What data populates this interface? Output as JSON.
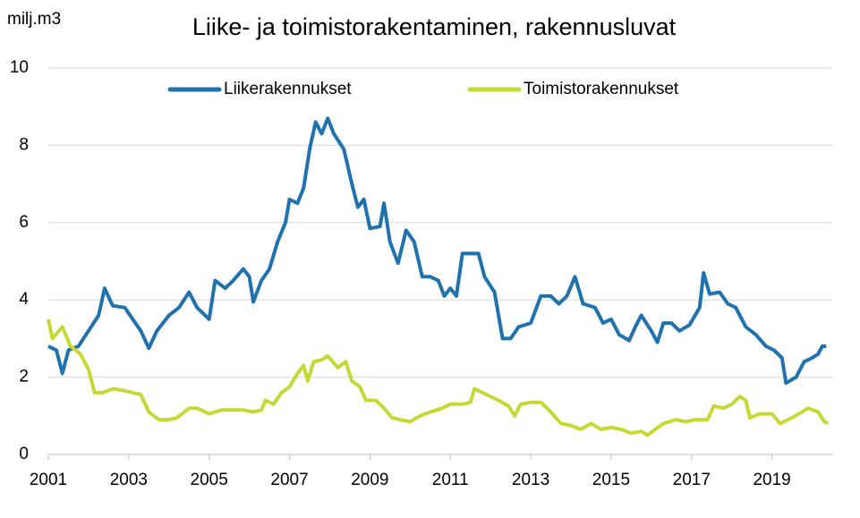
{
  "chart_data": {
    "type": "line",
    "title": "Liike- ja toimistorakentaminen, rakennusluvat",
    "y_label": "milj.m3",
    "xlim": [
      2001,
      2020.5
    ],
    "xticks": [
      2001,
      2003,
      2005,
      2007,
      2009,
      2011,
      2013,
      2015,
      2017,
      2019
    ],
    "ylim": [
      0,
      10
    ],
    "yticks": [
      0,
      2,
      4,
      6,
      8,
      10
    ],
    "grid": true,
    "legend": "top",
    "series": [
      {
        "name": "Liikerakennukset",
        "color": "#1f72ad",
        "x": [
          2001.0,
          2001.2,
          2001.35,
          2001.5,
          2001.75,
          2002.0,
          2002.25,
          2002.4,
          2002.6,
          2002.9,
          2003.1,
          2003.3,
          2003.5,
          2003.7,
          2004.0,
          2004.25,
          2004.5,
          2004.7,
          2005.0,
          2005.15,
          2005.4,
          2005.6,
          2005.85,
          2006.0,
          2006.1,
          2006.3,
          2006.5,
          2006.7,
          2006.9,
          2007.0,
          2007.2,
          2007.35,
          2007.5,
          2007.65,
          2007.8,
          2007.95,
          2008.1,
          2008.35,
          2008.55,
          2008.7,
          2008.85,
          2009.0,
          2009.25,
          2009.35,
          2009.5,
          2009.7,
          2009.9,
          2010.1,
          2010.3,
          2010.5,
          2010.7,
          2010.85,
          2011.0,
          2011.15,
          2011.3,
          2011.5,
          2011.7,
          2011.85,
          2012.1,
          2012.3,
          2012.5,
          2012.7,
          2013.0,
          2013.25,
          2013.5,
          2013.7,
          2013.9,
          2014.1,
          2014.3,
          2014.6,
          2014.8,
          2015.0,
          2015.2,
          2015.45,
          2015.6,
          2015.75,
          2016.0,
          2016.15,
          2016.3,
          2016.5,
          2016.7,
          2016.95,
          2017.2,
          2017.3,
          2017.45,
          2017.7,
          2017.9,
          2018.1,
          2018.35,
          2018.6,
          2018.85,
          2019.05,
          2019.25,
          2019.35,
          2019.6,
          2019.8,
          2020.0,
          2020.15,
          2020.25,
          2020.35
        ],
        "values": [
          2.8,
          2.7,
          2.1,
          2.7,
          2.8,
          3.2,
          3.6,
          4.3,
          3.85,
          3.8,
          3.5,
          3.2,
          2.75,
          3.2,
          3.6,
          3.8,
          4.2,
          3.8,
          3.5,
          4.5,
          4.3,
          4.5,
          4.8,
          4.6,
          3.95,
          4.5,
          4.8,
          5.5,
          6.0,
          6.6,
          6.5,
          6.9,
          7.9,
          8.6,
          8.3,
          8.7,
          8.3,
          7.9,
          7.0,
          6.4,
          6.6,
          5.85,
          5.9,
          6.5,
          5.5,
          4.95,
          5.8,
          5.5,
          4.6,
          4.6,
          4.5,
          4.1,
          4.3,
          4.1,
          5.2,
          5.2,
          5.2,
          4.6,
          4.2,
          3.0,
          3.0,
          3.3,
          3.4,
          4.1,
          4.1,
          3.9,
          4.1,
          4.6,
          3.9,
          3.8,
          3.4,
          3.5,
          3.1,
          2.95,
          3.3,
          3.6,
          3.2,
          2.9,
          3.4,
          3.4,
          3.2,
          3.35,
          3.8,
          4.7,
          4.15,
          4.2,
          3.9,
          3.8,
          3.3,
          3.1,
          2.8,
          2.7,
          2.5,
          1.85,
          2.0,
          2.4,
          2.5,
          2.6,
          2.8,
          2.8
        ]
      },
      {
        "name": "Toimistorakennukset",
        "color": "#c5d836",
        "x": [
          2001.0,
          2001.1,
          2001.35,
          2001.55,
          2001.8,
          2002.0,
          2002.15,
          2002.35,
          2002.6,
          2002.9,
          2003.1,
          2003.3,
          2003.5,
          2003.75,
          2004.0,
          2004.2,
          2004.5,
          2004.7,
          2005.0,
          2005.3,
          2005.6,
          2005.85,
          2006.1,
          2006.3,
          2006.4,
          2006.6,
          2006.8,
          2007.0,
          2007.2,
          2007.35,
          2007.45,
          2007.6,
          2007.8,
          2007.95,
          2008.2,
          2008.4,
          2008.55,
          2008.75,
          2008.9,
          2009.15,
          2009.35,
          2009.55,
          2009.75,
          2010.0,
          2010.25,
          2010.5,
          2010.8,
          2011.0,
          2011.3,
          2011.5,
          2011.6,
          2011.9,
          2012.2,
          2012.45,
          2012.6,
          2012.75,
          2013.0,
          2013.25,
          2013.5,
          2013.75,
          2014.0,
          2014.25,
          2014.5,
          2014.75,
          2015.0,
          2015.25,
          2015.5,
          2015.75,
          2015.9,
          2016.1,
          2016.3,
          2016.6,
          2016.85,
          2017.1,
          2017.4,
          2017.55,
          2017.8,
          2018.0,
          2018.2,
          2018.35,
          2018.45,
          2018.7,
          2019.0,
          2019.2,
          2019.5,
          2019.75,
          2019.9,
          2020.15,
          2020.3,
          2020.4
        ],
        "values": [
          3.5,
          3.0,
          3.3,
          2.8,
          2.6,
          2.2,
          1.6,
          1.6,
          1.7,
          1.65,
          1.6,
          1.55,
          1.1,
          0.9,
          0.9,
          0.95,
          1.2,
          1.2,
          1.05,
          1.15,
          1.15,
          1.15,
          1.1,
          1.15,
          1.4,
          1.3,
          1.6,
          1.75,
          2.1,
          2.3,
          1.9,
          2.4,
          2.45,
          2.55,
          2.25,
          2.4,
          1.9,
          1.75,
          1.4,
          1.4,
          1.2,
          0.95,
          0.9,
          0.85,
          1.0,
          1.1,
          1.2,
          1.3,
          1.3,
          1.35,
          1.7,
          1.55,
          1.4,
          1.25,
          1.0,
          1.3,
          1.35,
          1.35,
          1.1,
          0.8,
          0.75,
          0.65,
          0.8,
          0.65,
          0.7,
          0.65,
          0.55,
          0.6,
          0.5,
          0.65,
          0.8,
          0.9,
          0.85,
          0.9,
          0.9,
          1.25,
          1.2,
          1.3,
          1.5,
          1.4,
          0.95,
          1.05,
          1.05,
          0.8,
          0.95,
          1.1,
          1.2,
          1.1,
          0.85,
          0.8
        ]
      }
    ]
  }
}
